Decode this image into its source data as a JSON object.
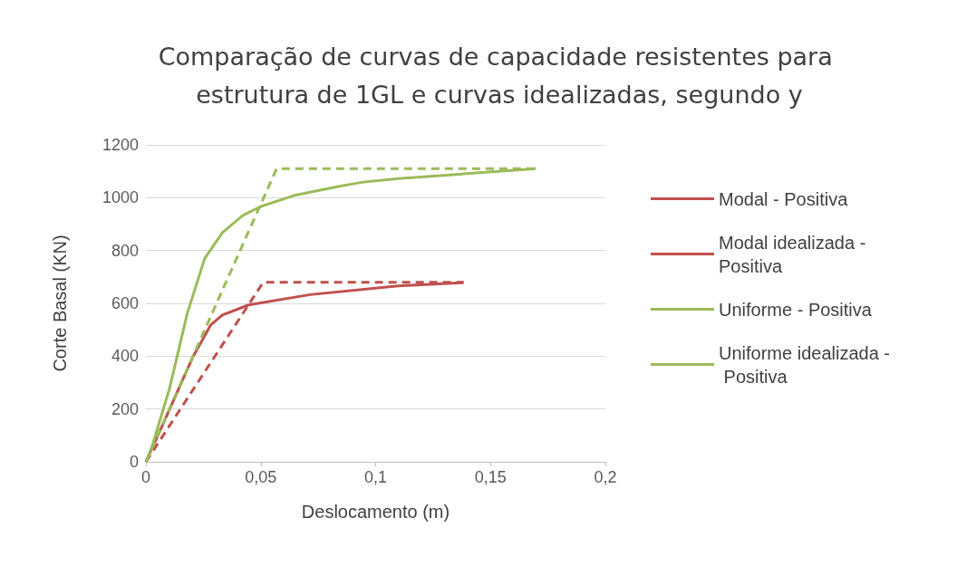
{
  "chart_data": {
    "type": "line",
    "title": "Comparação de curvas de capacidade resistentes para estrutura de 1GL e curvas idealizadas, segundo y",
    "xlabel": "Deslocamento (m)",
    "ylabel": "Corte Basal (KN)",
    "xlim": [
      0,
      0.2
    ],
    "xticks": [
      {
        "value": 0,
        "label": "0"
      },
      {
        "value": 0.05,
        "label": "0,05"
      },
      {
        "value": 0.1,
        "label": "0,1"
      },
      {
        "value": 0.15,
        "label": "0,15"
      },
      {
        "value": 0.2,
        "label": "0,2"
      }
    ],
    "ylim": [
      0,
      1200
    ],
    "yticks": [
      0,
      200,
      400,
      600,
      800,
      1000,
      1200
    ],
    "grid": "y",
    "legend": "right",
    "marker": "none",
    "series": [
      {
        "name": "Modal - Positiva",
        "color": "#c0504d",
        "line_style": "solid",
        "x": [
          0,
          0.0077,
          0.0205,
          0.0282,
          0.0333,
          0.0447,
          0.0715,
          0.1098,
          0.138
        ],
        "values": [
          0,
          148,
          398,
          518,
          556,
          594,
          633,
          666,
          678
        ]
      },
      {
        "name": "Modal idealizada - Positiva",
        "color": "#c0504d",
        "line_style": "dashed",
        "x": [
          0,
          0.0511,
          0.1384
        ],
        "values": [
          0,
          680,
          680
        ]
      },
      {
        "name": "Uniforme - Positiva",
        "color": "#9bbb59",
        "line_style": "solid",
        "x": [
          0,
          0.0027,
          0.0103,
          0.018,
          0.0256,
          0.0333,
          0.0422,
          0.0498,
          0.0651,
          0.0842,
          0.0945,
          0.1098,
          0.1697
        ],
        "values": [
          0,
          59,
          278,
          562,
          770,
          868,
          933,
          966,
          1010,
          1043,
          1059,
          1072,
          1110
        ]
      },
      {
        "name": "Uniforme idealizada - Positiva",
        "color": "#9bbb59",
        "line_style": "dashed",
        "x": [
          0,
          0.0569,
          0.1697
        ],
        "values": [
          0,
          1110,
          1110
        ]
      }
    ]
  }
}
